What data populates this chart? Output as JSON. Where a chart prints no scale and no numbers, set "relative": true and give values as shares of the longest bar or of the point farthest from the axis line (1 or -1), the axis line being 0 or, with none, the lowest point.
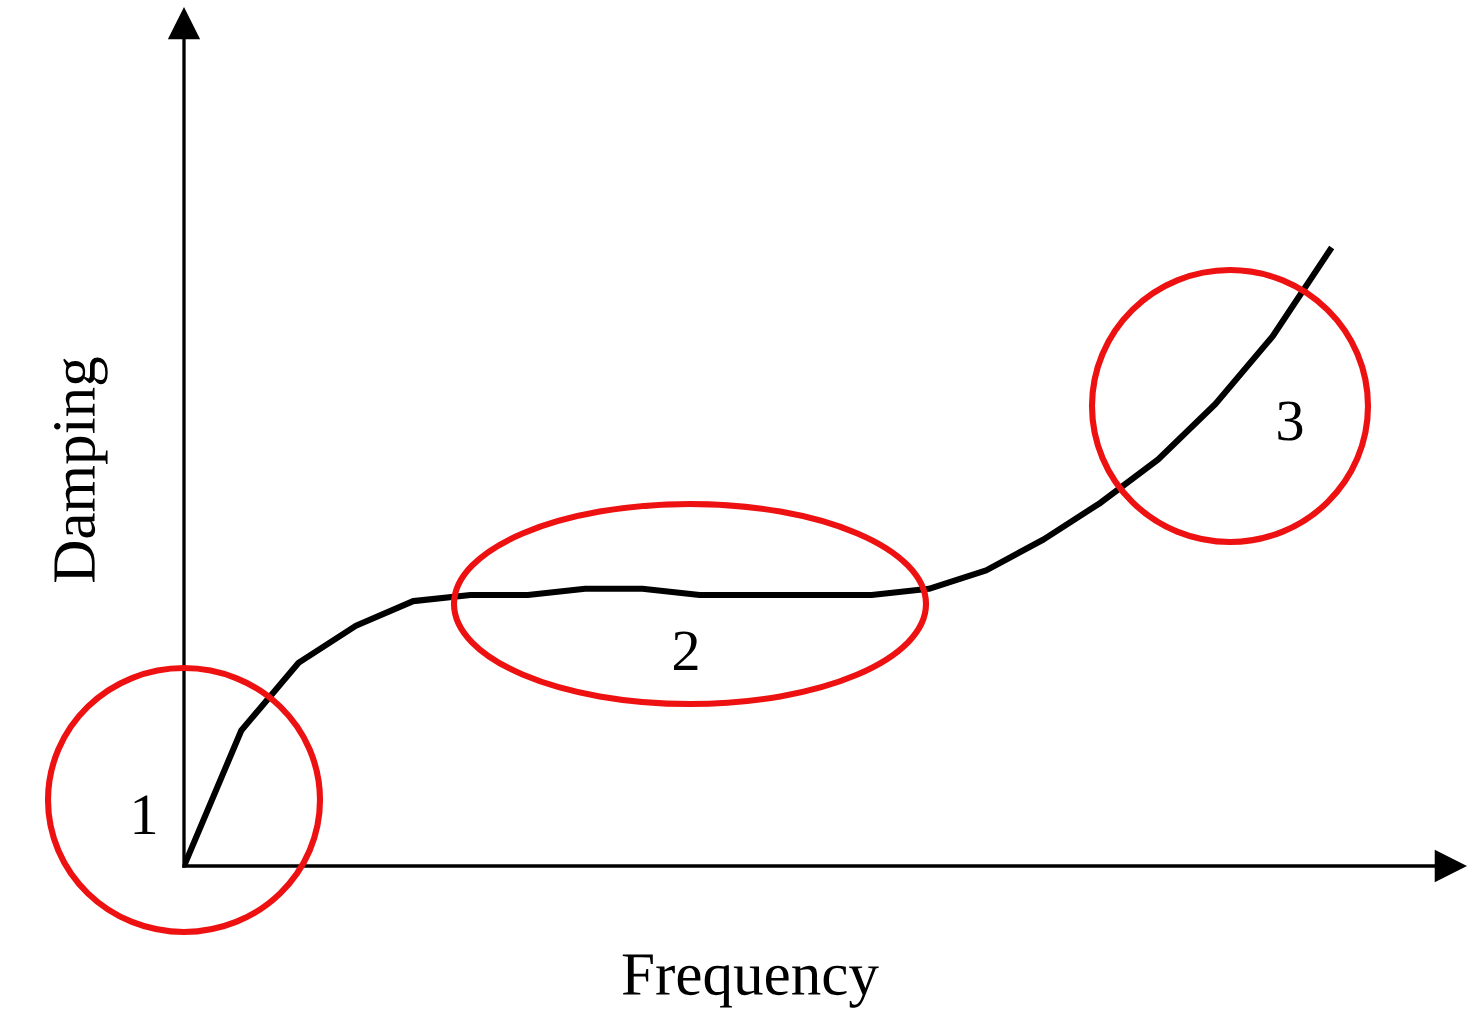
{
  "chart_data": {
    "type": "line",
    "relative": true,
    "xlabel": "Frequency",
    "ylabel": "Damping",
    "categories": [
      null,
      null,
      null,
      null,
      null,
      null,
      null,
      null,
      null,
      null,
      null,
      null,
      null,
      null,
      null,
      null,
      null,
      null,
      null,
      null,
      null
    ],
    "series": [
      {
        "color": "#000000",
        "values": [
          0,
          0.22,
          0.33,
          0.39,
          0.43,
          0.44,
          0.44,
          0.45,
          0.45,
          0.44,
          0.44,
          0.44,
          0.44,
          0.45,
          0.48,
          0.53,
          0.59,
          0.66,
          0.75,
          0.86,
          1
        ]
      }
    ],
    "annotations": [
      "1",
      "2",
      "3"
    ],
    "grid": false,
    "legend": false,
    "marker": "none",
    "line_style": "solid"
  }
}
